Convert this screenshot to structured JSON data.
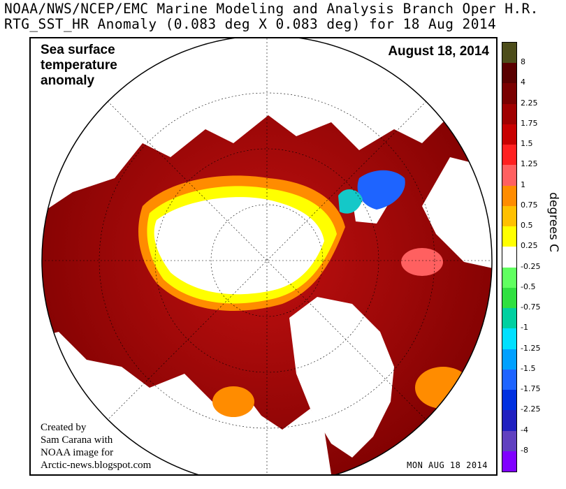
{
  "header": {
    "line1": "NOAA/NWS/NCEP/EMC Marine Modeling and Analysis Branch Oper H.R.",
    "line2": "RTG_SST_HR Anomaly (0.083 deg X 0.083 deg) for 18 Aug 2014"
  },
  "map": {
    "heading": [
      "Sea surface",
      "temperature",
      "anomaly"
    ],
    "date_label": "August 18, 2014",
    "credit": [
      "Created by",
      "Sam Carana with",
      "NOAA image for",
      "Arctic-news.blogspot.com"
    ],
    "timestamp": "MON AUG 18 2014",
    "colors": {
      "land": "#ffffff",
      "ice": "#ffffff",
      "strong_warm": "#7a0000",
      "warm": "#b01010",
      "mid_warm": "#d22a10",
      "mild_warm": "#ff7a00",
      "slight_warm": "#ffff00",
      "cool": "#1e64ff",
      "cool_mid": "#14c8c8",
      "grid": "#000000"
    }
  },
  "colorbar": {
    "unit_label": "degrees C",
    "bins": [
      {
        "label": "8",
        "color": "#4d4d1a"
      },
      {
        "label": "4",
        "color": "#5a0000"
      },
      {
        "label": "2.25",
        "color": "#7a0000"
      },
      {
        "label": "1.75",
        "color": "#a00000"
      },
      {
        "label": "1.5",
        "color": "#c80000"
      },
      {
        "label": "1.25",
        "color": "#ff2020"
      },
      {
        "label": "1",
        "color": "#ff6060"
      },
      {
        "label": "0.75",
        "color": "#ff8c00"
      },
      {
        "label": "0.5",
        "color": "#ffc000"
      },
      {
        "label": "0.25",
        "color": "#ffff00"
      },
      {
        "label": "-0.25",
        "color": "#ffffff"
      },
      {
        "label": "-0.5",
        "color": "#60ff60"
      },
      {
        "label": "-0.75",
        "color": "#30e040"
      },
      {
        "label": "-1",
        "color": "#00d0a0"
      },
      {
        "label": "-1.25",
        "color": "#00e0ff"
      },
      {
        "label": "-1.5",
        "color": "#00a0ff"
      },
      {
        "label": "-1.75",
        "color": "#1e64ff"
      },
      {
        "label": "-2.25",
        "color": "#0030e0"
      },
      {
        "label": "-4",
        "color": "#2020c0"
      },
      {
        "label": "-8",
        "color": "#6040c0"
      },
      {
        "label": "",
        "color": "#8000ff"
      }
    ]
  }
}
